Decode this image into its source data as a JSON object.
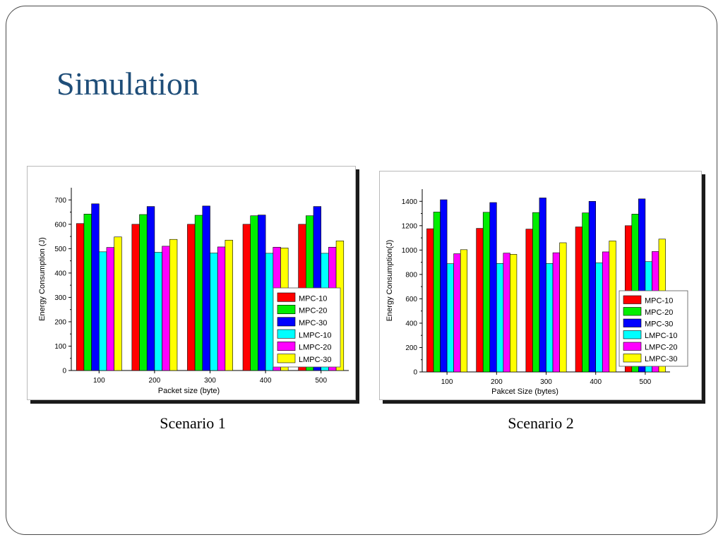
{
  "slide": {
    "title": "Simulation"
  },
  "captions": [
    "Scenario 1",
    "Scenario 2"
  ],
  "series_colors": [
    "#ff0000",
    "#00ee00",
    "#0000ff",
    "#00ffff",
    "#ff00ff",
    "#ffff00"
  ],
  "chart_data": [
    {
      "type": "bar",
      "title": "",
      "xlabel": "Packet size (byte)",
      "ylabel": "Energy Consumption (J)",
      "categories": [
        "100",
        "200",
        "300",
        "400",
        "500"
      ],
      "ylim": [
        0,
        750
      ],
      "yticks": [
        0,
        100,
        200,
        300,
        400,
        500,
        600,
        700
      ],
      "legend_position": "bottom-right",
      "series": [
        {
          "name": "MPC-10",
          "values": [
            603,
            600,
            600,
            600,
            600
          ]
        },
        {
          "name": "MPC-20",
          "values": [
            642,
            640,
            637,
            635,
            635
          ]
        },
        {
          "name": "MPC-30",
          "values": [
            684,
            673,
            675,
            638,
            673
          ]
        },
        {
          "name": "LMPC-10",
          "values": [
            487,
            485,
            482,
            481,
            481
          ]
        },
        {
          "name": "LMPC-20",
          "values": [
            505,
            510,
            507,
            506,
            506
          ]
        },
        {
          "name": "LMPC-30",
          "values": [
            548,
            538,
            535,
            503,
            532
          ]
        }
      ]
    },
    {
      "type": "bar",
      "title": "",
      "xlabel": "Pakcet Size (bytes)",
      "ylabel": "Energy Consumption(J)",
      "categories": [
        "100",
        "200",
        "300",
        "400",
        "500"
      ],
      "ylim": [
        0,
        1500
      ],
      "yticks": [
        0,
        200,
        400,
        600,
        800,
        1000,
        1200,
        1400
      ],
      "legend_position": "bottom-right",
      "series": [
        {
          "name": "MPC-10",
          "values": [
            1175,
            1178,
            1172,
            1190,
            1200
          ]
        },
        {
          "name": "MPC-20",
          "values": [
            1312,
            1310,
            1308,
            1305,
            1295
          ]
        },
        {
          "name": "MPC-30",
          "values": [
            1413,
            1390,
            1428,
            1400,
            1420
          ]
        },
        {
          "name": "LMPC-10",
          "values": [
            888,
            890,
            890,
            895,
            905
          ]
        },
        {
          "name": "LMPC-20",
          "values": [
            970,
            975,
            978,
            985,
            988
          ]
        },
        {
          "name": "LMPC-30",
          "values": [
            1003,
            965,
            1060,
            1075,
            1090
          ]
        }
      ]
    }
  ]
}
